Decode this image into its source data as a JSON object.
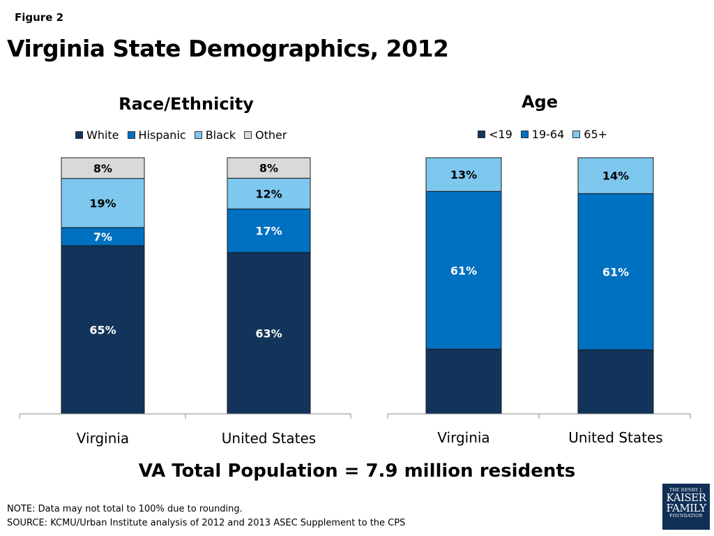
{
  "figure_label": "Figure 2",
  "title": "Virginia State Demographics, 2012",
  "footer_title": "VA Total Population = 7.9 million residents",
  "note": "NOTE: Data may not total to 100% due to rounding.",
  "source": "SOURCE: KCMU/Urban Institute analysis of 2012 and 2013 ASEC Supplement to the CPS",
  "logo": [
    "THE HENRY J.",
    "KAISER",
    "FAMILY",
    "FOUNDATION"
  ],
  "chart_data": [
    {
      "type": "bar",
      "stacked": true,
      "title": "Race/Ethnicity",
      "categories": [
        "Virginia",
        "United States"
      ],
      "series": [
        {
          "name": "White",
          "color": "#13345a",
          "values": [
            65,
            63
          ],
          "labels": [
            "65%",
            "63%"
          ]
        },
        {
          "name": "Hispanic",
          "color": "#0070c0",
          "values": [
            7,
            17
          ],
          "labels": [
            "7%",
            "17%"
          ]
        },
        {
          "name": "Black",
          "color": "#7ec8ef",
          "values": [
            19,
            12
          ],
          "labels": [
            "19%",
            "12%"
          ]
        },
        {
          "name": "Other",
          "color": "#d9d9d9",
          "values": [
            8,
            8
          ],
          "labels": [
            "8%",
            "8%"
          ]
        }
      ],
      "legend_position": "top"
    },
    {
      "type": "bar",
      "stacked": true,
      "title": "Age",
      "categories": [
        "Virginia",
        "United States"
      ],
      "series": [
        {
          "name": "<19",
          "color": "#13345a",
          "values": [
            25,
            25
          ],
          "labels": [
            "",
            ""
          ]
        },
        {
          "name": "19-64",
          "color": "#0070c0",
          "values": [
            61,
            61
          ],
          "labels": [
            "61%",
            "61%"
          ]
        },
        {
          "name": "65+",
          "color": "#7ec8ef",
          "values": [
            13,
            14
          ],
          "labels": [
            "13%",
            "14%"
          ]
        }
      ],
      "legend_position": "top"
    }
  ]
}
